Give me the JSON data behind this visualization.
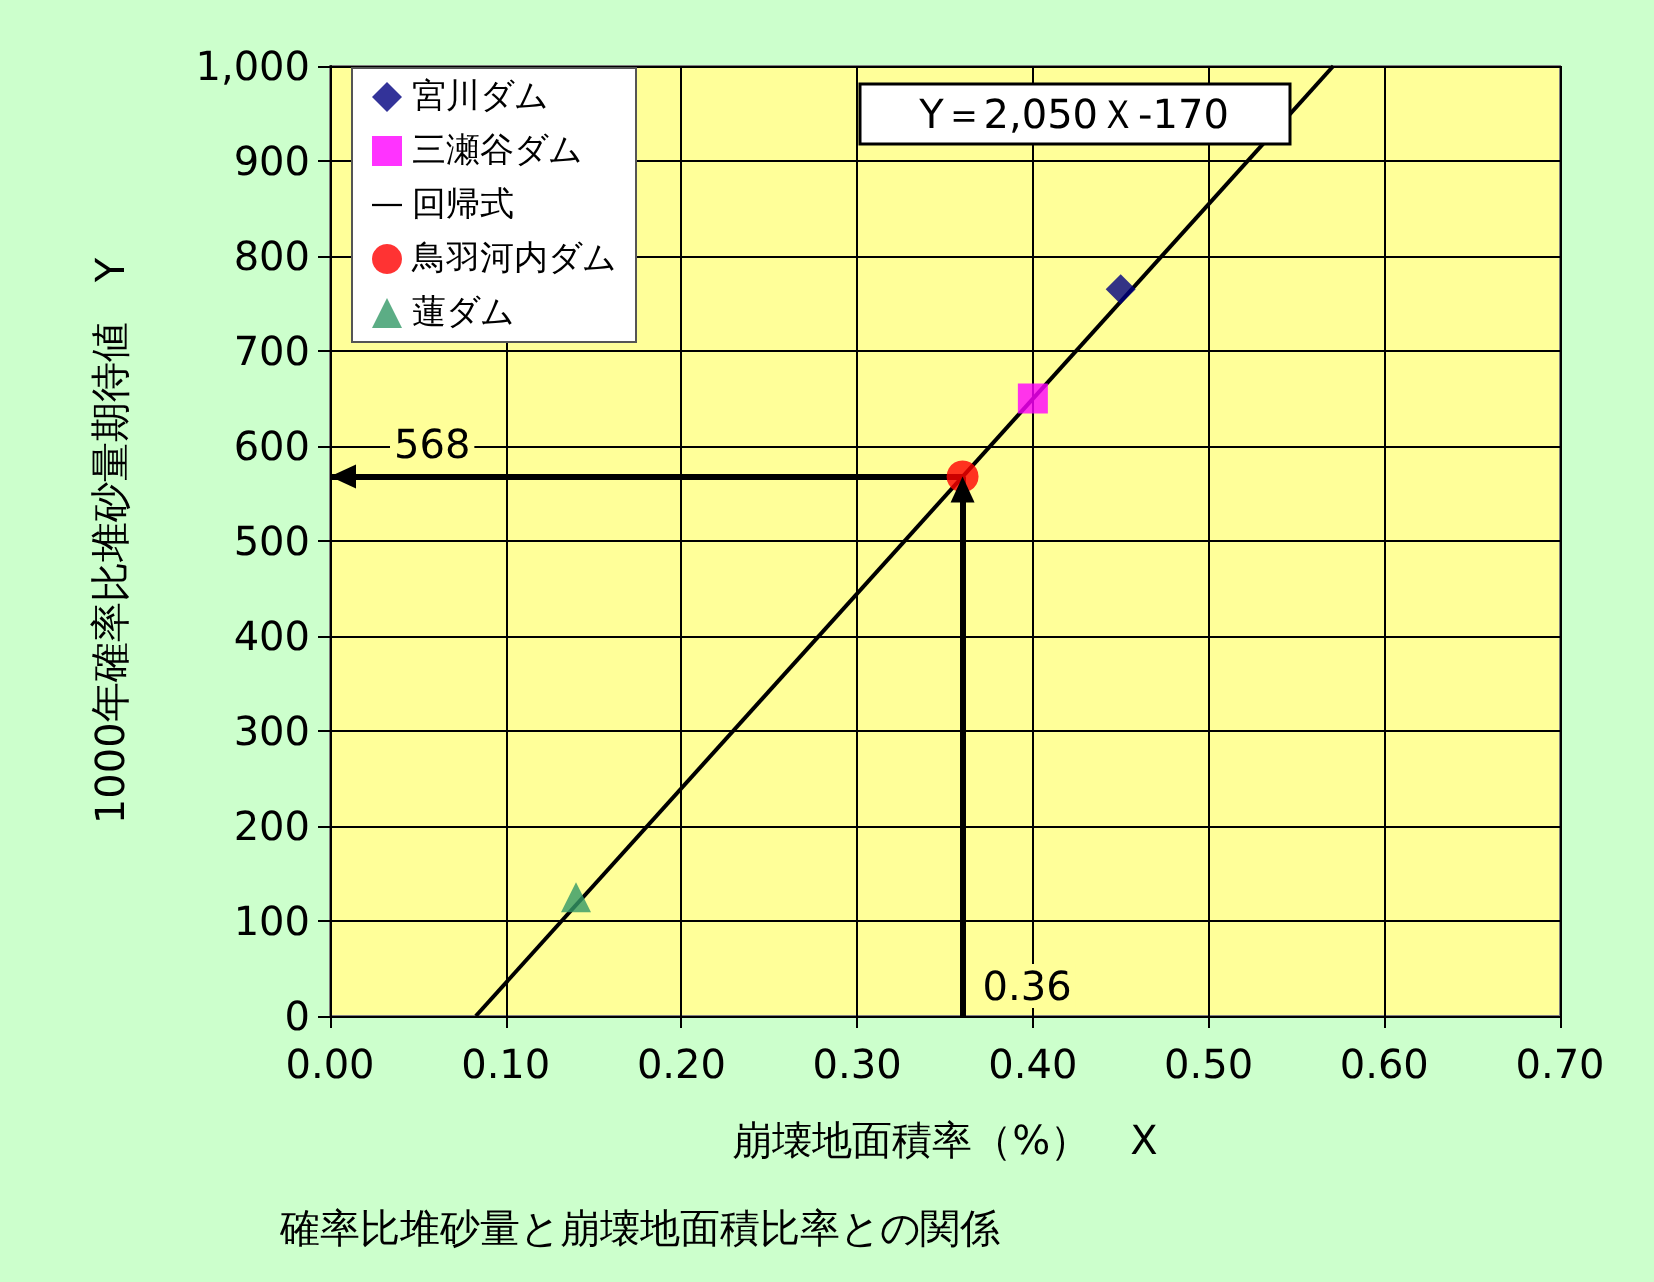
{
  "chart_data": {
    "type": "scatter",
    "title": "確率比堆砂量と崩壊地面積比率との関係",
    "xlabel": "崩壊地面積率（%）　X",
    "ylabel": "1000年確率比堆砂量期待値　Y",
    "series": [
      {
        "name": "宮川ダム",
        "color": "#000080",
        "marker": "diamond",
        "x": [
          0.45
        ],
        "values": [
          765
        ]
      },
      {
        "name": "三瀬谷ダム",
        "color": "#ff00ff",
        "marker": "square",
        "x": [
          0.4
        ],
        "values": [
          650
        ]
      },
      {
        "name": "回帰式",
        "type": "line",
        "color": "#000000",
        "marker": "none",
        "line_style": "solid",
        "x": [
          0.083,
          0.571
        ],
        "values": [
          0,
          1000
        ]
      },
      {
        "name": "鳥羽河内ダム",
        "color": "#ff0000",
        "marker": "circle",
        "x": [
          0.36
        ],
        "values": [
          568
        ]
      },
      {
        "name": "蓮ダム",
        "color": "#339966",
        "marker": "triangle",
        "x": [
          0.14
        ],
        "values": [
          125
        ]
      }
    ],
    "annotations": [
      "Y＝2,050Ｘ-170"
    ],
    "ref_lines": [
      {
        "axis": "y",
        "value": 568,
        "label": "568",
        "color": "#000000"
      },
      {
        "axis": "x",
        "value": 0.36,
        "label": "0.36",
        "color": "#000000"
      }
    ],
    "xlim": [
      0,
      0.7
    ],
    "xticks": [
      {
        "value": 0,
        "label": "0.00"
      },
      {
        "value": 0.1,
        "label": "0.10"
      },
      {
        "value": 0.2,
        "label": "0.20"
      },
      {
        "value": 0.3,
        "label": "0.30"
      },
      {
        "value": 0.4,
        "label": "0.40"
      },
      {
        "value": 0.5,
        "label": "0.50"
      },
      {
        "value": 0.6,
        "label": "0.60"
      },
      {
        "value": 0.7,
        "label": "0.70"
      }
    ],
    "ylim": [
      0,
      1000
    ],
    "yticks": [
      0,
      100,
      200,
      300,
      400,
      500,
      600,
      700,
      800,
      900,
      {
        "value": 1000,
        "label": "1,000"
      }
    ],
    "grid": true,
    "legend": "top left"
  }
}
